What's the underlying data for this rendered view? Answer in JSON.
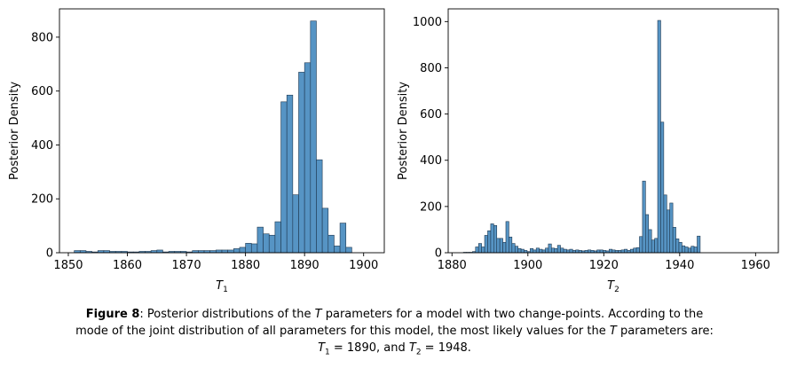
{
  "chart_data": [
    {
      "type": "bar",
      "subtype": "histogram",
      "ylabel": "Posterior Density",
      "xlabel_var": "T",
      "xlabel_sub": "1",
      "xlim": [
        1848.5,
        1903.5
      ],
      "ylim": [
        0,
        905
      ],
      "xticks": [
        1850,
        1860,
        1870,
        1880,
        1890,
        1900
      ],
      "yticks": [
        0,
        200,
        400,
        600,
        800
      ],
      "bin_start": 1851,
      "bin_width": 1,
      "values": [
        8,
        8,
        5,
        3,
        8,
        8,
        5,
        5,
        5,
        3,
        3,
        5,
        5,
        8,
        10,
        3,
        5,
        5,
        5,
        3,
        8,
        8,
        8,
        8,
        10,
        10,
        10,
        15,
        20,
        35,
        33,
        95,
        70,
        65,
        115,
        560,
        585,
        215,
        670,
        705,
        860,
        345,
        165,
        65,
        25,
        110,
        20
      ]
    },
    {
      "type": "bar",
      "subtype": "histogram",
      "ylabel": "Posterior Density",
      "xlabel_var": "T",
      "xlabel_sub": "2",
      "xlim": [
        1879,
        1966
      ],
      "ylim": [
        0,
        1055
      ],
      "xticks": [
        1880,
        1900,
        1920,
        1940,
        1960
      ],
      "yticks": [
        0,
        200,
        400,
        600,
        800,
        1000
      ],
      "bin_start": 1883,
      "bin_width": 0.8,
      "values": [
        2,
        2,
        2,
        5,
        25,
        40,
        25,
        75,
        95,
        125,
        118,
        62,
        62,
        45,
        135,
        68,
        40,
        28,
        18,
        15,
        10,
        5,
        18,
        12,
        20,
        15,
        12,
        20,
        38,
        20,
        18,
        32,
        20,
        15,
        12,
        15,
        10,
        12,
        10,
        8,
        10,
        12,
        10,
        8,
        12,
        12,
        10,
        8,
        15,
        12,
        10,
        10,
        12,
        15,
        10,
        15,
        20,
        22,
        70,
        310,
        165,
        100,
        55,
        62,
        1005,
        565,
        250,
        185,
        215,
        110,
        60,
        45,
        30,
        25,
        20,
        28,
        25,
        72
      ]
    }
  ],
  "caption": {
    "figure_label": "Figure 8",
    "text_1": ": Posterior distributions of the ",
    "var": "T",
    "text_2": " parameters for a model with two change-points. According to the",
    "text_3": "mode of the joint distribution of all parameters for this model, the most likely values for the ",
    "text_4": " parameters are:",
    "text_5": " = 1890, and ",
    "text_6": " = 1948.",
    "sub_1": "1",
    "sub_2": "2"
  },
  "colors": {
    "bar_fill": "#5694c4",
    "bar_edge": "#1f3850",
    "axis": "#000000"
  }
}
